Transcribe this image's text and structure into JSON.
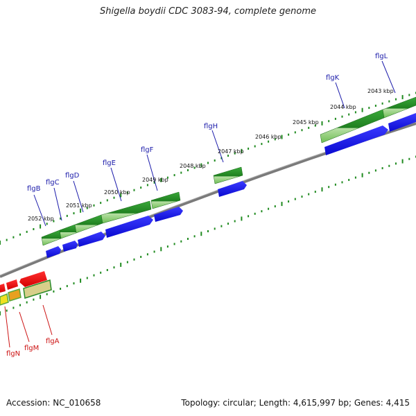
{
  "title": "Shigella boydii CDC 3083-94, complete genome",
  "footer": {
    "accession": "Accession: NC_010658",
    "topology": "Topology: circular; Length: 4,615,997 bp; Genes: 4,415"
  },
  "colors": {
    "backbone": "#808080",
    "ruler_tick": "#1f8a1f",
    "cds_forward": "#2a9a2a",
    "cds_forward_dark": "#187818",
    "gene_forward": "#1010e8",
    "cds_reverse": "#ee1111",
    "gene_reverse_yellow": "#f0e020",
    "label_forward": "#1a1aaa",
    "label_reverse": "#cc1111"
  },
  "scale_labels": [
    "2052 kbp",
    "2051 kbp",
    "2050 kbp",
    "2049 kbp",
    "2048 kbp",
    "2047 kbp",
    "2046 kbp",
    "2045 kbp",
    "2044 kbp",
    "2043 kbp"
  ],
  "forward_genes": [
    "flgB",
    "flgC",
    "flgD",
    "flgE",
    "flgF",
    "flgH",
    "flgK",
    "flgL"
  ],
  "reverse_genes": [
    "flgN",
    "flgM",
    "flgA"
  ]
}
